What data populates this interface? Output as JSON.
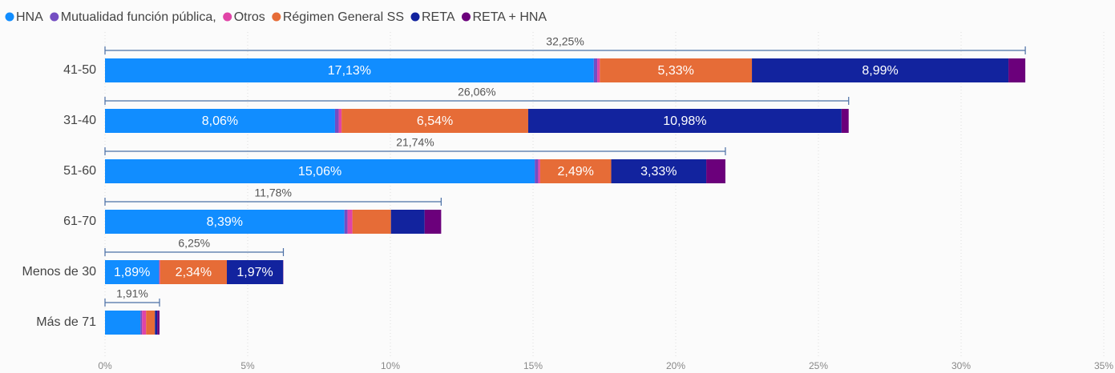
{
  "chart_data": {
    "type": "stacked-bar-horizontal",
    "categories": [
      "41-50",
      "31-40",
      "51-60",
      "61-70",
      "Menos de 30",
      "Más de 71"
    ],
    "series": [
      {
        "name": "HNA",
        "color": "#118dff",
        "values": [
          17.13,
          8.06,
          15.06,
          8.39,
          1.89,
          1.24
        ],
        "value_labels": [
          "17,13%",
          "8,06%",
          "15,06%",
          "8,39%",
          "1,89%",
          null
        ]
      },
      {
        "name": "Mutualidad función pública,",
        "color": "#744ec2",
        "values": [
          0.12,
          0.13,
          0.12,
          0.11,
          0.02,
          0.06
        ],
        "value_labels": [
          null,
          null,
          null,
          null,
          null,
          null
        ]
      },
      {
        "name": "Otros",
        "color": "#e044a7",
        "values": [
          0.09,
          0.1,
          0.07,
          0.17,
          0.02,
          0.14
        ],
        "value_labels": [
          null,
          null,
          null,
          null,
          null,
          null
        ]
      },
      {
        "name": "Régimen General SS",
        "color": "#e66c37",
        "values": [
          5.33,
          6.54,
          2.49,
          1.35,
          2.34,
          0.31
        ],
        "value_labels": [
          "5,33%",
          "6,54%",
          "2,49%",
          null,
          "2,34%",
          null
        ]
      },
      {
        "name": "RETA",
        "color": "#12239e",
        "values": [
          8.99,
          10.98,
          3.33,
          1.18,
          1.97,
          0.08
        ],
        "value_labels": [
          "8,99%",
          "10,98%",
          "3,33%",
          null,
          "1,97%",
          null
        ]
      },
      {
        "name": "RETA + HNA",
        "color": "#6b007b",
        "values": [
          0.59,
          0.25,
          0.67,
          0.58,
          0.01,
          0.08
        ],
        "value_labels": [
          null,
          null,
          null,
          null,
          null,
          null
        ]
      }
    ],
    "totals": [
      32.25,
      26.06,
      21.74,
      11.78,
      6.25,
      1.91
    ],
    "total_labels": [
      "32,25%",
      "26,06%",
      "21,74%",
      "11,78%",
      "6,25%",
      "1,91%"
    ],
    "xlim": [
      0,
      35
    ],
    "xticks": [
      {
        "value": 0,
        "label": "0%"
      },
      {
        "value": 5,
        "label": "5%"
      },
      {
        "value": 10,
        "label": "10%"
      },
      {
        "value": 15,
        "label": "15%"
      },
      {
        "value": 20,
        "label": "20%"
      },
      {
        "value": 25,
        "label": "25%"
      },
      {
        "value": 30,
        "label": "30%"
      },
      {
        "value": 35,
        "label": "35%"
      }
    ],
    "grid": true,
    "legend": "top-left"
  }
}
